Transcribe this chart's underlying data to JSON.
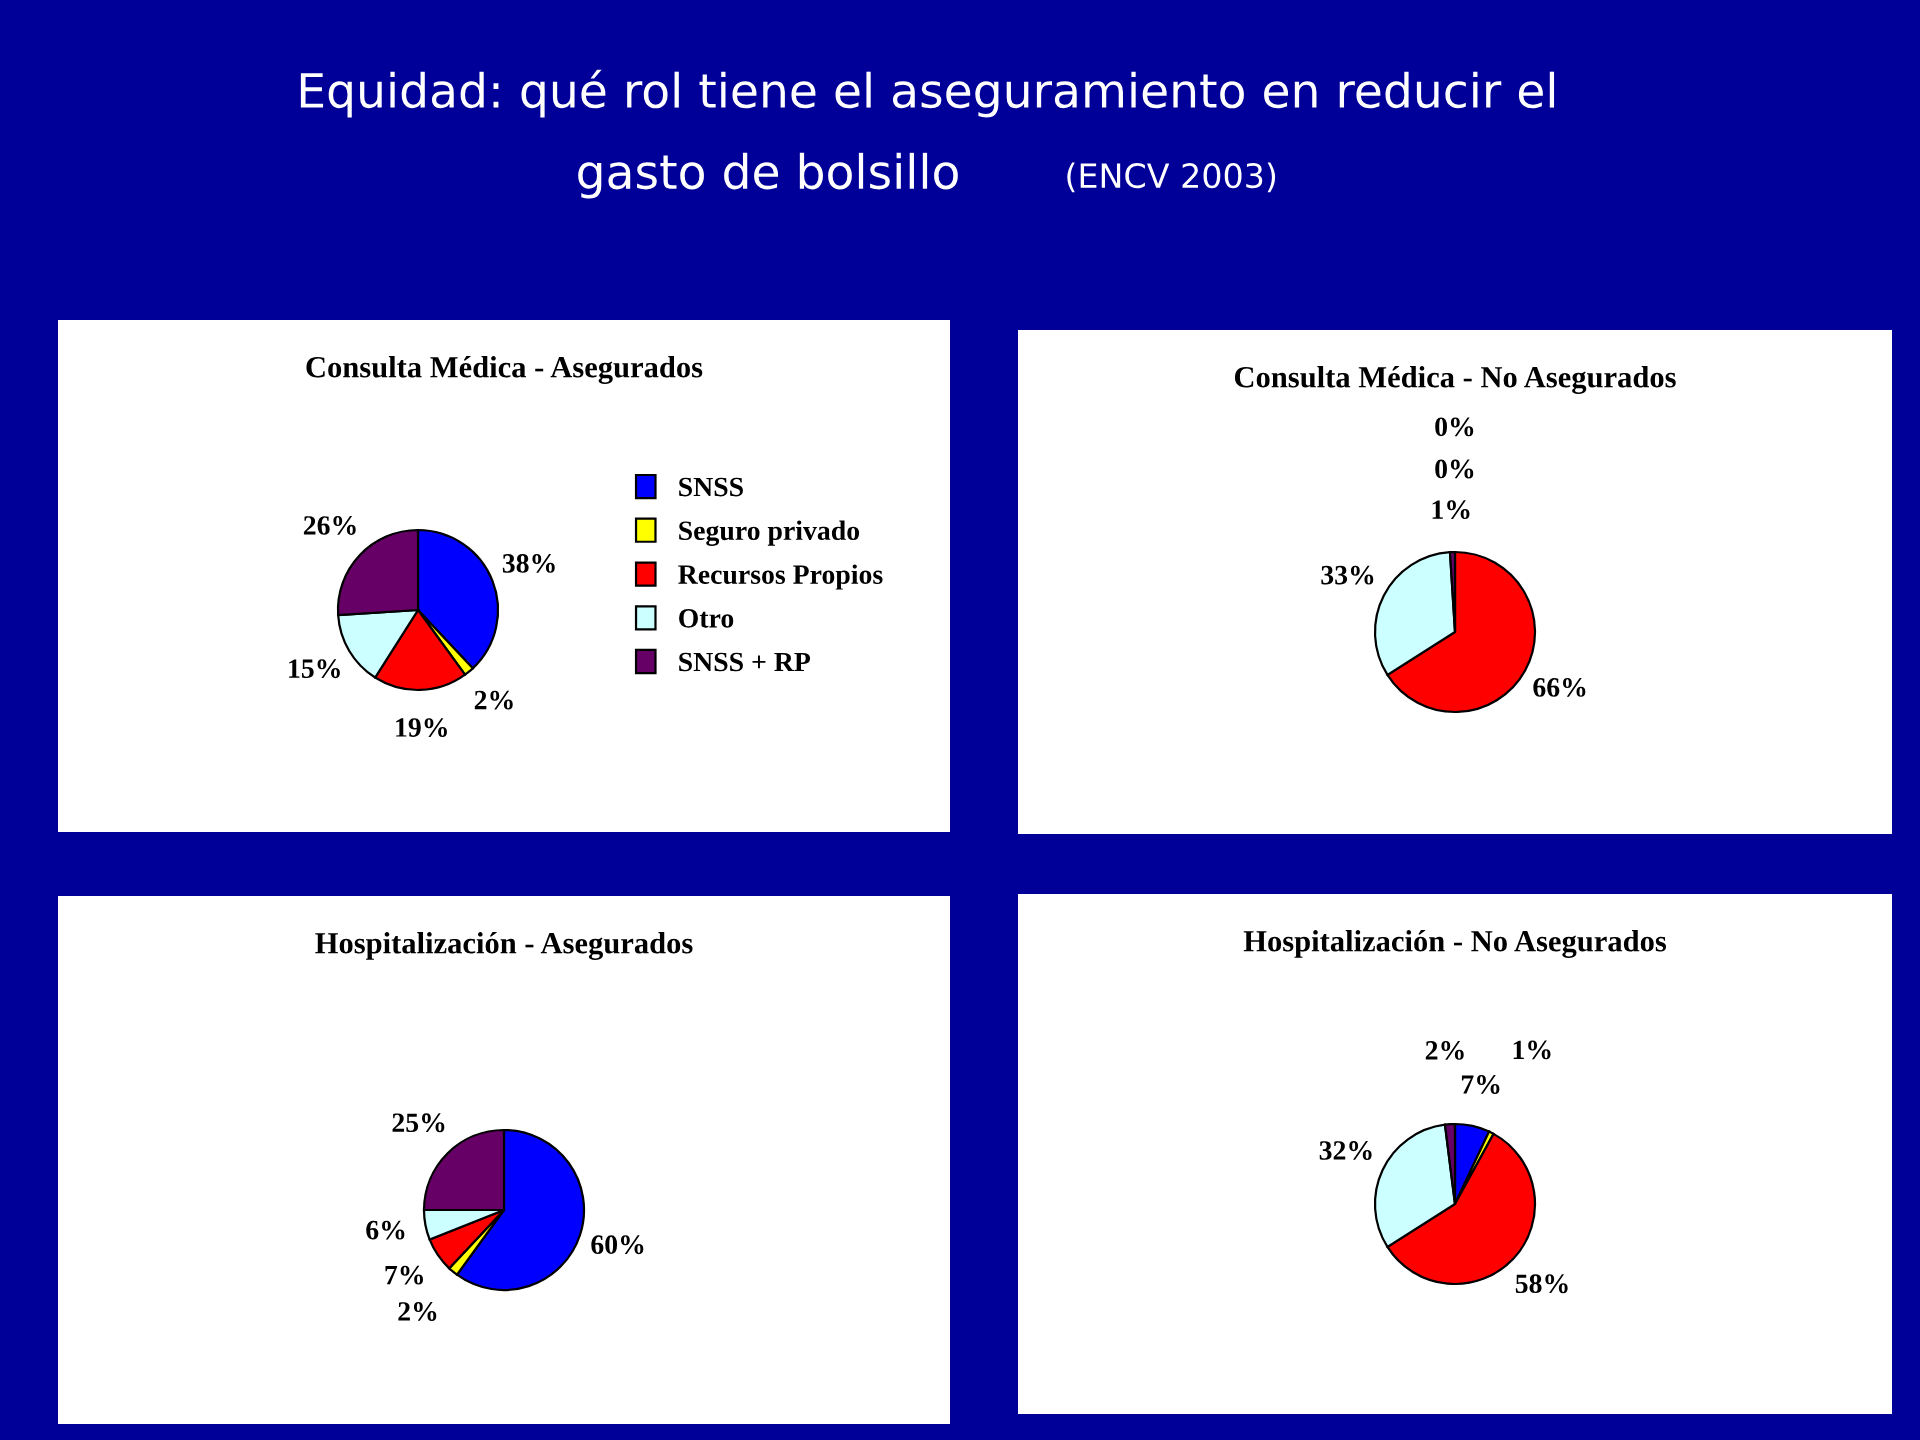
{
  "chart_data": [
    {
      "type": "pie",
      "title": "Consulta Médica - Asegurados",
      "annotations": [
        "Equidad: qué rol tiene el aseguramiento en reducir el",
        "gasto de bolsillo",
        "(ENCV 2003)"
      ],
      "categories": [
        "SNSS",
        "Seguro privado",
        "Recursos Propios",
        "Otro",
        "SNSS + RP"
      ],
      "values": [
        38,
        2,
        19,
        15,
        26
      ],
      "value_labels": [
        "38%",
        "2%",
        "19%",
        "15%",
        "26%"
      ],
      "colors": [
        "#0000ff",
        "#ffff00",
        "#ff0000",
        "#ccffff",
        "#660066"
      ],
      "legend": "right"
    },
    {
      "type": "pie",
      "title": "Consulta Médica - No Asegurados",
      "categories": [
        null,
        null,
        null,
        null,
        null
      ],
      "values": [
        0,
        0,
        66,
        33,
        1
      ],
      "value_labels": [
        "0%",
        "0%",
        "66%",
        "33%",
        "1%"
      ],
      "colors": [
        "#0000ff",
        "#ffff00",
        "#ff0000",
        "#ccffff",
        "#660066"
      ]
    },
    {
      "type": "pie",
      "title": "Hospitalización - Asegurados",
      "categories": [
        null,
        null,
        null,
        null,
        null
      ],
      "values": [
        60,
        2,
        7,
        6,
        25
      ],
      "value_labels": [
        "60%",
        "2%",
        "7%",
        "6%",
        "25%"
      ],
      "colors": [
        "#0000ff",
        "#ffff00",
        "#ff0000",
        "#ccffff",
        "#660066"
      ]
    },
    {
      "type": "pie",
      "title": "Hospitalización - No Asegurados",
      "categories": [
        null,
        null,
        null,
        null,
        null
      ],
      "values": [
        7,
        1,
        58,
        32,
        2
      ],
      "value_labels": [
        "7%",
        "1%",
        "58%",
        "32%",
        "2%"
      ],
      "colors": [
        "#0000ff",
        "#ffff00",
        "#ff0000",
        "#ccffff",
        "#660066"
      ]
    }
  ]
}
